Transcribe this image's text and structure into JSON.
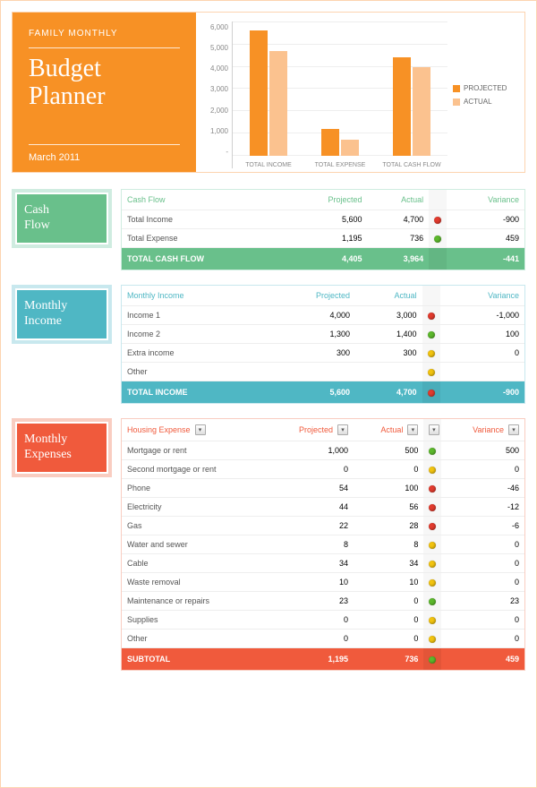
{
  "colors": {
    "orange": "#f79125",
    "orange_light": "#fbc28f",
    "orange_border": "#fdd4b0",
    "green": "#69c08b",
    "green_border": "#cfece0",
    "teal": "#4fb7c4",
    "teal_border": "#c8e8ee",
    "red": "#f05a3c",
    "red_border": "#f9cdc1",
    "dot_red": "#e23b2e",
    "dot_green": "#5cb82c",
    "dot_yellow": "#f2c30f"
  },
  "header": {
    "preTitle": "FAMILY MONTHLY",
    "titleLine1": "Budget",
    "titleLine2": "Planner",
    "date": "March 2011"
  },
  "chart": {
    "ymax": 6000,
    "yticks": [
      "6,000",
      "5,000",
      "4,000",
      "3,000",
      "2,000",
      "1,000",
      "-"
    ],
    "groups": [
      {
        "label": "TOTAL INCOME",
        "projected": 5600,
        "actual": 4700
      },
      {
        "label": "TOTAL EXPENSE",
        "projected": 1195,
        "actual": 736
      },
      {
        "label": "TOTAL CASH FLOW",
        "projected": 4405,
        "actual": 3964
      }
    ],
    "legend": {
      "projected": "PROJECTED",
      "actual": "ACTUAL"
    }
  },
  "cashflow": {
    "title": "Cash\nFlow",
    "columns": [
      "Cash Flow",
      "Projected",
      "Actual",
      "Variance"
    ],
    "rows": [
      {
        "label": "Total Income",
        "p": "5,600",
        "a": "4,700",
        "dot": "red",
        "v": "-900"
      },
      {
        "label": "Total Expense",
        "p": "1,195",
        "a": "736",
        "dot": "green",
        "v": "459"
      }
    ],
    "total": {
      "label": "TOTAL CASH FLOW",
      "p": "4,405",
      "a": "3,964",
      "dot": "",
      "v": "-441"
    }
  },
  "income": {
    "title": "Monthly\nIncome",
    "columns": [
      "Monthly Income",
      "Projected",
      "Actual",
      "Variance"
    ],
    "rows": [
      {
        "label": "Income 1",
        "p": "4,000",
        "a": "3,000",
        "dot": "red",
        "v": "-1,000"
      },
      {
        "label": "Income 2",
        "p": "1,300",
        "a": "1,400",
        "dot": "green",
        "v": "100"
      },
      {
        "label": "Extra income",
        "p": "300",
        "a": "300",
        "dot": "yellow",
        "v": "0"
      },
      {
        "label": "Other",
        "p": "",
        "a": "",
        "dot": "yellow",
        "v": ""
      }
    ],
    "total": {
      "label": "TOTAL INCOME",
      "p": "5,600",
      "a": "4,700",
      "dot": "red",
      "v": "-900"
    }
  },
  "expenses": {
    "title": "Monthly\nExpenses",
    "columns": [
      "Housing Expense",
      "Projected",
      "Actual",
      "Variance"
    ],
    "rows": [
      {
        "label": "Mortgage or rent",
        "p": "1,000",
        "a": "500",
        "dot": "green",
        "v": "500"
      },
      {
        "label": "Second mortgage or rent",
        "p": "0",
        "a": "0",
        "dot": "yellow",
        "v": "0"
      },
      {
        "label": "Phone",
        "p": "54",
        "a": "100",
        "dot": "red",
        "v": "-46"
      },
      {
        "label": "Electricity",
        "p": "44",
        "a": "56",
        "dot": "red",
        "v": "-12"
      },
      {
        "label": "Gas",
        "p": "22",
        "a": "28",
        "dot": "red",
        "v": "-6"
      },
      {
        "label": "Water and sewer",
        "p": "8",
        "a": "8",
        "dot": "yellow",
        "v": "0"
      },
      {
        "label": "Cable",
        "p": "34",
        "a": "34",
        "dot": "yellow",
        "v": "0"
      },
      {
        "label": "Waste removal",
        "p": "10",
        "a": "10",
        "dot": "yellow",
        "v": "0"
      },
      {
        "label": "Maintenance or repairs",
        "p": "23",
        "a": "0",
        "dot": "green",
        "v": "23"
      },
      {
        "label": "Supplies",
        "p": "0",
        "a": "0",
        "dot": "yellow",
        "v": "0"
      },
      {
        "label": "Other",
        "p": "0",
        "a": "0",
        "dot": "yellow",
        "v": "0"
      }
    ],
    "total": {
      "label": "SUBTOTAL",
      "p": "1,195",
      "a": "736",
      "dot": "green",
      "v": "459"
    }
  }
}
